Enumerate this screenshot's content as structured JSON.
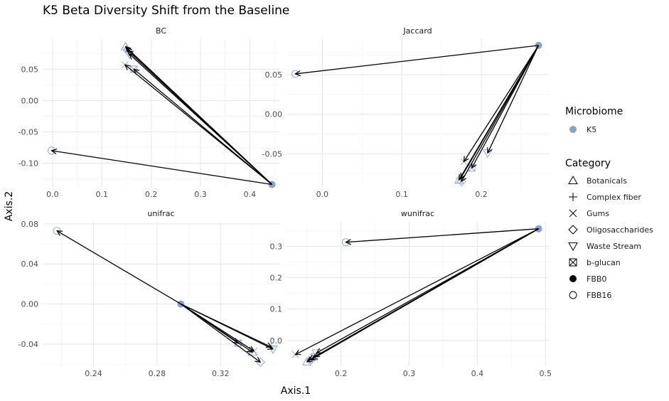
{
  "chart_data": {
    "type": "scatter",
    "title": "K5 Beta Diversity Shift from the Baseline",
    "xlabel": "Axis.1",
    "ylabel": "Axis.2",
    "colors": {
      "microbiome": "#8c9fcb",
      "arrow": "#000000"
    },
    "legend": {
      "position": "right",
      "microbiome": {
        "title": "Microbiome",
        "items": [
          "K5"
        ]
      },
      "category": {
        "title": "Category",
        "items": [
          {
            "label": "Botanicals",
            "shape": "triangle"
          },
          {
            "label": "Complex fiber",
            "shape": "plus"
          },
          {
            "label": "Gums",
            "shape": "cross"
          },
          {
            "label": "Oligosaccharides",
            "shape": "diamond"
          },
          {
            "label": "Waste Stream",
            "shape": "triangle-down"
          },
          {
            "label": "b-glucan",
            "shape": "boxcross"
          },
          {
            "label": "FBB0",
            "shape": "filled-circle"
          },
          {
            "label": "FBB16",
            "shape": "open-circle"
          }
        ]
      }
    },
    "panels": [
      {
        "name": "BC",
        "xlim": [
          -0.02,
          0.46
        ],
        "ylim": [
          -0.138,
          0.098
        ],
        "xticks": [
          0,
          0.1,
          0.2,
          0.3,
          0.4
        ],
        "xtick_labels": [
          "0.0",
          "0.1",
          "0.2",
          "0.3",
          "0.4"
        ],
        "yticks": [
          -0.1,
          -0.05,
          0,
          0.05
        ],
        "ytick_labels": [
          "-0.10",
          "-0.05",
          "0.00",
          "0.05"
        ],
        "baseline": {
          "x": 0.445,
          "y": -0.134
        },
        "points": [
          {
            "x": 0.148,
            "y": 0.086,
            "shape": "triangle"
          },
          {
            "x": 0.15,
            "y": 0.084,
            "shape": "plus"
          },
          {
            "x": 0.147,
            "y": 0.057,
            "shape": "cross"
          },
          {
            "x": 0.152,
            "y": 0.08,
            "shape": "diamond"
          },
          {
            "x": 0.156,
            "y": 0.074,
            "shape": "triangle-down"
          },
          {
            "x": 0.165,
            "y": 0.05,
            "shape": "boxcross"
          },
          {
            "x": -0.002,
            "y": -0.08,
            "shape": "open-circle"
          }
        ]
      },
      {
        "name": "Jaccard",
        "xlim": [
          -0.045,
          0.285
        ],
        "ylim": [
          -0.092,
          0.095
        ],
        "xticks": [
          0,
          0.1,
          0.2
        ],
        "xtick_labels": [
          "0.0",
          "0.1",
          "0.2"
        ],
        "yticks": [
          -0.05,
          0,
          0.05
        ],
        "ytick_labels": [
          "-0.05",
          "0.00",
          "0.05"
        ],
        "baseline": {
          "x": 0.272,
          "y": 0.087
        },
        "points": [
          {
            "x": 0.172,
            "y": -0.083,
            "shape": "triangle"
          },
          {
            "x": 0.174,
            "y": -0.081,
            "shape": "plus"
          },
          {
            "x": 0.178,
            "y": -0.06,
            "shape": "cross"
          },
          {
            "x": 0.175,
            "y": -0.085,
            "shape": "diamond"
          },
          {
            "x": 0.208,
            "y": -0.049,
            "shape": "triangle-down"
          },
          {
            "x": 0.188,
            "y": -0.068,
            "shape": "boxcross"
          },
          {
            "x": -0.034,
            "y": 0.051,
            "shape": "open-circle"
          }
        ]
      },
      {
        "name": "unifrac",
        "xlim": [
          0.208,
          0.357
        ],
        "ylim": [
          -0.062,
          0.082
        ],
        "xticks": [
          0.24,
          0.28,
          0.32
        ],
        "xtick_labels": [
          "0.24",
          "0.28",
          "0.32"
        ],
        "yticks": [
          -0.04,
          0,
          0.04,
          0.08
        ],
        "ytick_labels": [
          "-0.04",
          "0.00",
          "0.04",
          "0.08"
        ],
        "baseline": {
          "x": 0.295,
          "y": 0.0
        },
        "points": [
          {
            "x": 0.34,
            "y": -0.048,
            "shape": "triangle"
          },
          {
            "x": 0.352,
            "y": -0.043,
            "shape": "plus"
          },
          {
            "x": 0.341,
            "y": -0.047,
            "shape": "cross"
          },
          {
            "x": 0.345,
            "y": -0.058,
            "shape": "diamond"
          },
          {
            "x": 0.353,
            "y": -0.045,
            "shape": "triangle-down"
          },
          {
            "x": 0.331,
            "y": -0.039,
            "shape": "boxcross"
          },
          {
            "x": 0.217,
            "y": 0.073,
            "shape": "open-circle"
          }
        ]
      },
      {
        "name": "wunifrac",
        "xlim": [
          0.12,
          0.505
        ],
        "ylim": [
          -0.082,
          0.378
        ],
        "xticks": [
          0.2,
          0.3,
          0.4,
          0.5
        ],
        "xtick_labels": [
          "0.2",
          "0.3",
          "0.4",
          "0.5"
        ],
        "yticks": [
          0,
          0.1,
          0.2,
          0.3
        ],
        "ytick_labels": [
          "0.0",
          "0.1",
          "0.2",
          "0.3"
        ],
        "baseline": {
          "x": 0.49,
          "y": 0.356
        },
        "points": [
          {
            "x": 0.15,
            "y": -0.068,
            "shape": "triangle"
          },
          {
            "x": 0.153,
            "y": -0.063,
            "shape": "plus"
          },
          {
            "x": 0.133,
            "y": -0.045,
            "shape": "cross"
          },
          {
            "x": 0.157,
            "y": -0.06,
            "shape": "diamond"
          },
          {
            "x": 0.164,
            "y": -0.04,
            "shape": "triangle-down"
          },
          {
            "x": 0.161,
            "y": -0.052,
            "shape": "boxcross"
          },
          {
            "x": 0.207,
            "y": 0.313,
            "shape": "open-circle"
          }
        ]
      }
    ]
  }
}
